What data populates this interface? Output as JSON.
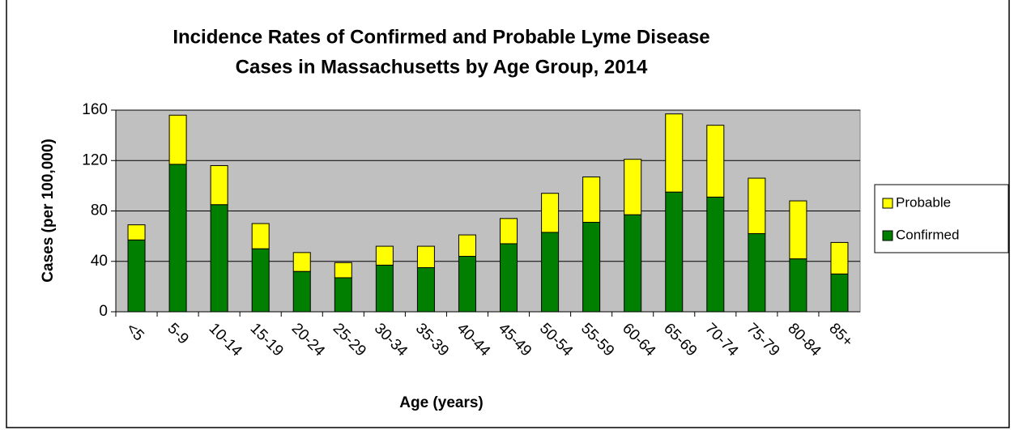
{
  "chart_data": {
    "type": "stacked-bar",
    "title": [
      "Incidence Rates of Confirmed and Probable Lyme Disease",
      "Cases in Massachusetts by Age Group, 2014"
    ],
    "x_label": "Age (years)",
    "y_label": "Cases (per 100,000)",
    "categories": [
      "<5",
      "5-9",
      "10-14",
      "15-19",
      "20-24",
      "25-29",
      "30-34",
      "35-39",
      "40-44",
      "45-49",
      "50-54",
      "55-59",
      "60-64",
      "65-69",
      "70-74",
      "75-79",
      "80-84",
      "85+"
    ],
    "series": [
      {
        "name": "Confirmed",
        "color": "#007f00",
        "values": [
          57,
          117,
          85,
          50,
          32,
          27,
          37,
          35,
          44,
          54,
          63,
          71,
          77,
          95,
          91,
          62,
          42,
          30
        ]
      },
      {
        "name": "Probable",
        "color": "#ffff00",
        "values": [
          12,
          39,
          31,
          20,
          15,
          12,
          15,
          17,
          17,
          20,
          31,
          36,
          44,
          62,
          57,
          44,
          46,
          25
        ]
      }
    ],
    "ylim": [
      0,
      160
    ],
    "yticks": [
      0,
      40,
      80,
      120,
      160
    ],
    "grid": true,
    "legend": "right"
  }
}
